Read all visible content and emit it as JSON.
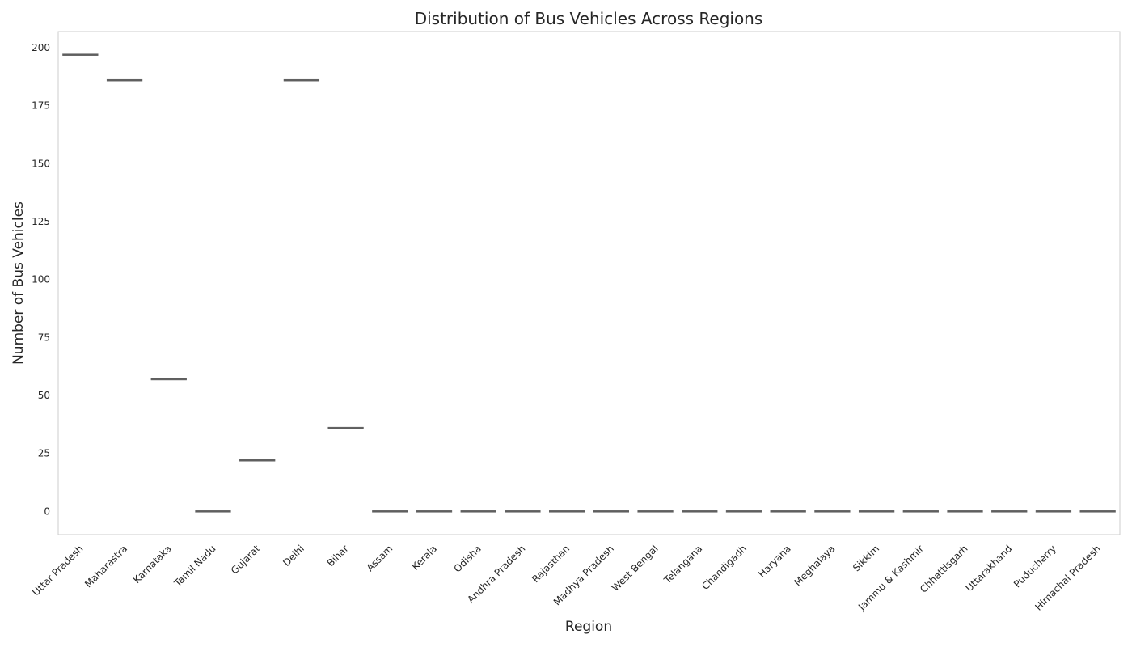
{
  "chart_data": {
    "type": "box",
    "title": "Distribution of Bus Vehicles Across Regions",
    "xlabel": "Region",
    "ylabel": "Number of Bus Vehicles",
    "ylim": [
      -10,
      207
    ],
    "yticks": [
      0,
      25,
      50,
      75,
      100,
      125,
      150,
      175,
      200
    ],
    "grid": false,
    "categories": [
      "Uttar Pradesh",
      "Maharastra",
      "Karnataka",
      "Tamil Nadu",
      "Gujarat",
      "Delhi",
      "Bihar",
      "Assam",
      "Kerala",
      "Odisha",
      "Andhra Pradesh",
      "Rajasthan",
      "Madhya Pradesh",
      "West Bengal",
      "Telangana",
      "Chandigadh",
      "Haryana",
      "Meghalaya",
      "Sikkim",
      "Jammu & Kashmir",
      "Chhattisgarh",
      "Uttarakhand",
      "Puducherry",
      "Himachal Pradesh"
    ],
    "values": [
      197,
      186,
      57,
      0,
      22,
      186,
      36,
      0,
      0,
      0,
      0,
      0,
      0,
      0,
      0,
      0,
      0,
      0,
      0,
      0,
      0,
      0,
      0,
      0
    ],
    "colors": {
      "box": "#5f5f5f",
      "frame": "#cccccc",
      "text": "#262626"
    }
  }
}
